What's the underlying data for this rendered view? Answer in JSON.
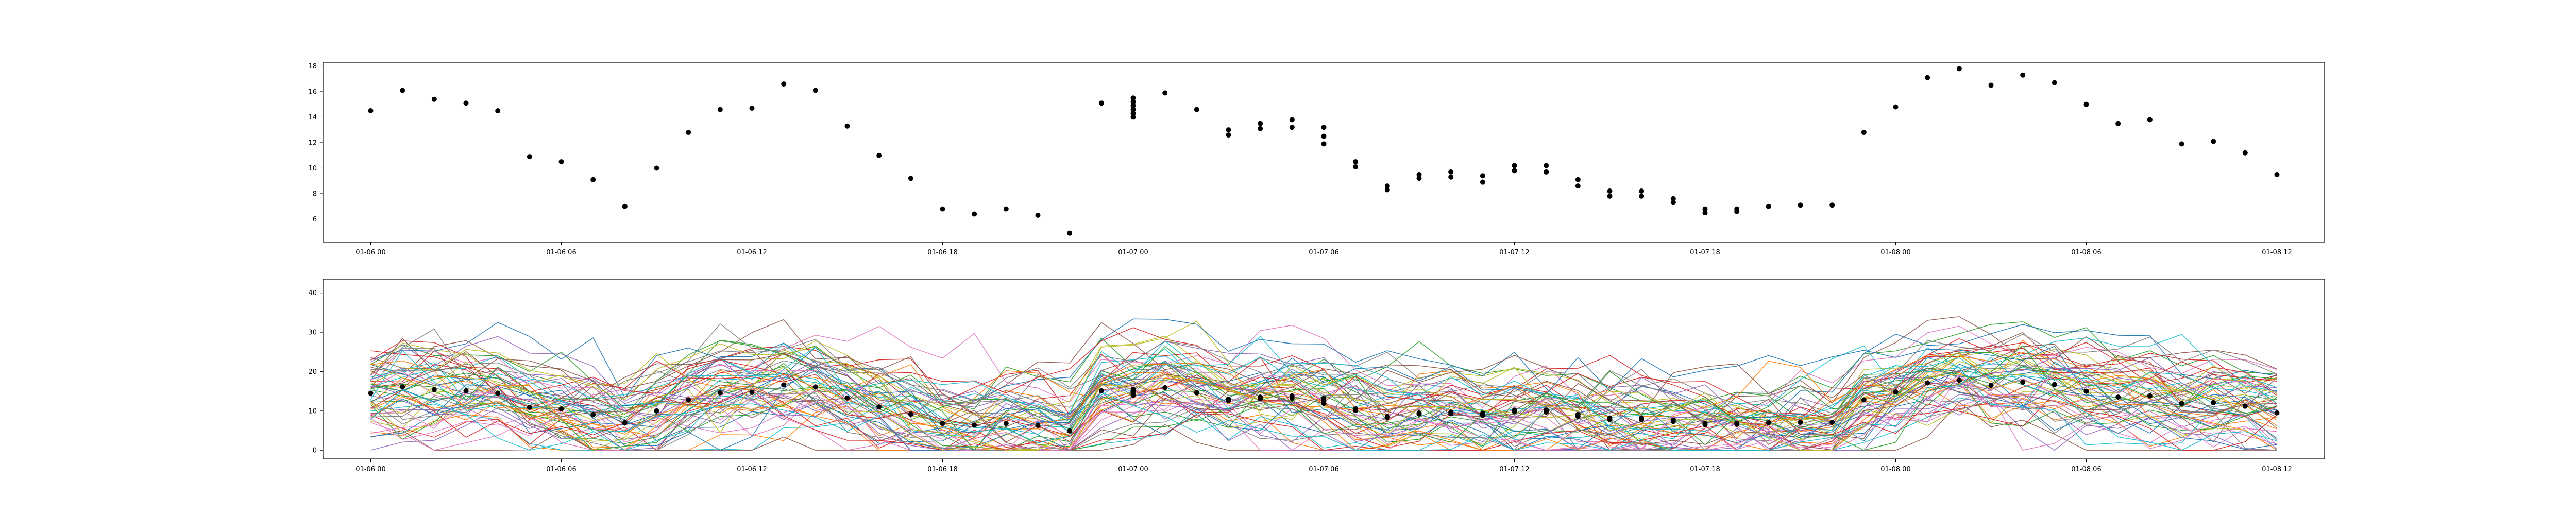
{
  "chart_data": [
    {
      "type": "scatter",
      "x_axis": {
        "type": "datetime",
        "range": [
          "2024-01-05T22:30",
          "2024-01-08T13:30"
        ],
        "tick_labels": [
          "01-06 00",
          "01-06 06",
          "01-06 12",
          "01-06 18",
          "01-07 00",
          "01-07 06",
          "01-07 12",
          "01-07 18",
          "01-08 00",
          "01-08 06",
          "01-08 12"
        ],
        "tick_values": [
          "2024-01-06T00:00",
          "2024-01-06T06:00",
          "2024-01-06T12:00",
          "2024-01-06T18:00",
          "2024-01-07T00:00",
          "2024-01-07T06:00",
          "2024-01-07T12:00",
          "2024-01-07T18:00",
          "2024-01-08T00:00",
          "2024-01-08T06:00",
          "2024-01-08T12:00"
        ]
      },
      "y_axis": {
        "range": [
          4.2,
          18.3
        ],
        "tick_labels": [
          "6",
          "8",
          "10",
          "12",
          "14",
          "16",
          "18"
        ],
        "tick_values": [
          6,
          8,
          10,
          12,
          14,
          16,
          18
        ]
      },
      "grid": false,
      "series": [
        {
          "color": "#000000",
          "points": [
            [
              "2024-01-06T00:00",
              14.5
            ],
            [
              "2024-01-06T01:00",
              16.1
            ],
            [
              "2024-01-06T02:00",
              15.4
            ],
            [
              "2024-01-06T03:00",
              15.1
            ],
            [
              "2024-01-06T04:00",
              14.5
            ],
            [
              "2024-01-06T05:00",
              10.9
            ],
            [
              "2024-01-06T06:00",
              10.5
            ],
            [
              "2024-01-06T07:00",
              9.1
            ],
            [
              "2024-01-06T08:00",
              7.0
            ],
            [
              "2024-01-06T09:00",
              10.0
            ],
            [
              "2024-01-06T10:00",
              12.8
            ],
            [
              "2024-01-06T11:00",
              14.6
            ],
            [
              "2024-01-06T12:00",
              14.7
            ],
            [
              "2024-01-06T13:00",
              16.6
            ],
            [
              "2024-01-06T14:00",
              16.1
            ],
            [
              "2024-01-06T15:00",
              13.3
            ],
            [
              "2024-01-06T16:00",
              11.0
            ],
            [
              "2024-01-06T17:00",
              9.2
            ],
            [
              "2024-01-06T18:00",
              6.8
            ],
            [
              "2024-01-06T19:00",
              6.4
            ],
            [
              "2024-01-06T20:00",
              6.8
            ],
            [
              "2024-01-06T21:00",
              6.3
            ],
            [
              "2024-01-06T22:00",
              4.9
            ],
            [
              "2024-01-06T23:00",
              15.1
            ],
            [
              "2024-01-07T00:00",
              14.0
            ],
            [
              "2024-01-07T00:00",
              14.3
            ],
            [
              "2024-01-07T00:00",
              14.6
            ],
            [
              "2024-01-07T00:00",
              14.9
            ],
            [
              "2024-01-07T00:00",
              15.2
            ],
            [
              "2024-01-07T00:00",
              15.5
            ],
            [
              "2024-01-07T01:00",
              15.9
            ],
            [
              "2024-01-07T02:00",
              14.6
            ],
            [
              "2024-01-07T03:00",
              13.0
            ],
            [
              "2024-01-07T03:00",
              12.6
            ],
            [
              "2024-01-07T04:00",
              13.1
            ],
            [
              "2024-01-07T04:00",
              13.5
            ],
            [
              "2024-01-07T05:00",
              13.2
            ],
            [
              "2024-01-07T05:00",
              13.8
            ],
            [
              "2024-01-07T06:00",
              13.2
            ],
            [
              "2024-01-07T06:00",
              12.5
            ],
            [
              "2024-01-07T06:00",
              11.9
            ],
            [
              "2024-01-07T07:00",
              10.5
            ],
            [
              "2024-01-07T07:00",
              10.1
            ],
            [
              "2024-01-07T08:00",
              8.6
            ],
            [
              "2024-01-07T08:00",
              8.3
            ],
            [
              "2024-01-07T09:00",
              9.5
            ],
            [
              "2024-01-07T09:00",
              9.2
            ],
            [
              "2024-01-07T10:00",
              9.7
            ],
            [
              "2024-01-07T10:00",
              9.3
            ],
            [
              "2024-01-07T11:00",
              9.4
            ],
            [
              "2024-01-07T11:00",
              8.9
            ],
            [
              "2024-01-07T12:00",
              10.2
            ],
            [
              "2024-01-07T12:00",
              9.8
            ],
            [
              "2024-01-07T13:00",
              10.2
            ],
            [
              "2024-01-07T13:00",
              9.7
            ],
            [
              "2024-01-07T14:00",
              9.1
            ],
            [
              "2024-01-07T14:00",
              8.6
            ],
            [
              "2024-01-07T15:00",
              8.2
            ],
            [
              "2024-01-07T15:00",
              7.8
            ],
            [
              "2024-01-07T16:00",
              8.2
            ],
            [
              "2024-01-07T16:00",
              7.8
            ],
            [
              "2024-01-07T17:00",
              7.6
            ],
            [
              "2024-01-07T17:00",
              7.3
            ],
            [
              "2024-01-07T18:00",
              6.8
            ],
            [
              "2024-01-07T18:00",
              6.5
            ],
            [
              "2024-01-07T19:00",
              6.8
            ],
            [
              "2024-01-07T19:00",
              6.6
            ],
            [
              "2024-01-07T20:00",
              7.0
            ],
            [
              "2024-01-07T21:00",
              7.1
            ],
            [
              "2024-01-07T22:00",
              7.1
            ],
            [
              "2024-01-07T23:00",
              12.8
            ],
            [
              "2024-01-08T00:00",
              14.8
            ],
            [
              "2024-01-08T01:00",
              17.1
            ],
            [
              "2024-01-08T02:00",
              17.8
            ],
            [
              "2024-01-08T03:00",
              16.5
            ],
            [
              "2024-01-08T04:00",
              17.3
            ],
            [
              "2024-01-08T05:00",
              16.7
            ],
            [
              "2024-01-08T06:00",
              15.0
            ],
            [
              "2024-01-08T07:00",
              13.5
            ],
            [
              "2024-01-08T08:00",
              13.8
            ],
            [
              "2024-01-08T09:00",
              11.9
            ],
            [
              "2024-01-08T10:00",
              12.1
            ],
            [
              "2024-01-08T11:00",
              11.2
            ],
            [
              "2024-01-08T12:00",
              9.5
            ]
          ]
        }
      ]
    },
    {
      "type": "line",
      "x_axis": {
        "type": "datetime",
        "range": [
          "2024-01-05T22:30",
          "2024-01-08T13:30"
        ],
        "tick_labels": [
          "01-06 00",
          "01-06 06",
          "01-06 12",
          "01-06 18",
          "01-07 00",
          "01-07 06",
          "01-07 12",
          "01-07 18",
          "01-08 00",
          "01-08 06",
          "01-08 12"
        ],
        "tick_values": [
          "2024-01-06T00:00",
          "2024-01-06T06:00",
          "2024-01-06T12:00",
          "2024-01-06T18:00",
          "2024-01-07T00:00",
          "2024-01-07T06:00",
          "2024-01-07T12:00",
          "2024-01-07T18:00",
          "2024-01-08T00:00",
          "2024-01-08T06:00",
          "2024-01-08T12:00"
        ]
      },
      "y_axis": {
        "range": [
          -2.2,
          43.5
        ],
        "tick_labels": [
          "0",
          "10",
          "20",
          "30",
          "40"
        ],
        "tick_values": [
          0,
          10,
          20,
          30,
          40
        ]
      },
      "grid": false,
      "series_style": {
        "linewidth": 1.4,
        "alpha": 0.95
      },
      "palette": [
        "#1f77b4",
        "#ff7f0e",
        "#2ca02c",
        "#d62728",
        "#9467bd",
        "#8c564b",
        "#e377c2",
        "#7f7f7f",
        "#bcbd22",
        "#17becf"
      ],
      "ensemble_series_count": 60,
      "ensemble_spread_sd": 6.5,
      "ensemble_clip": [
        0,
        42
      ],
      "overlay_points": "same as panel 1 scatter points",
      "overlay_color": "#000000"
    }
  ]
}
